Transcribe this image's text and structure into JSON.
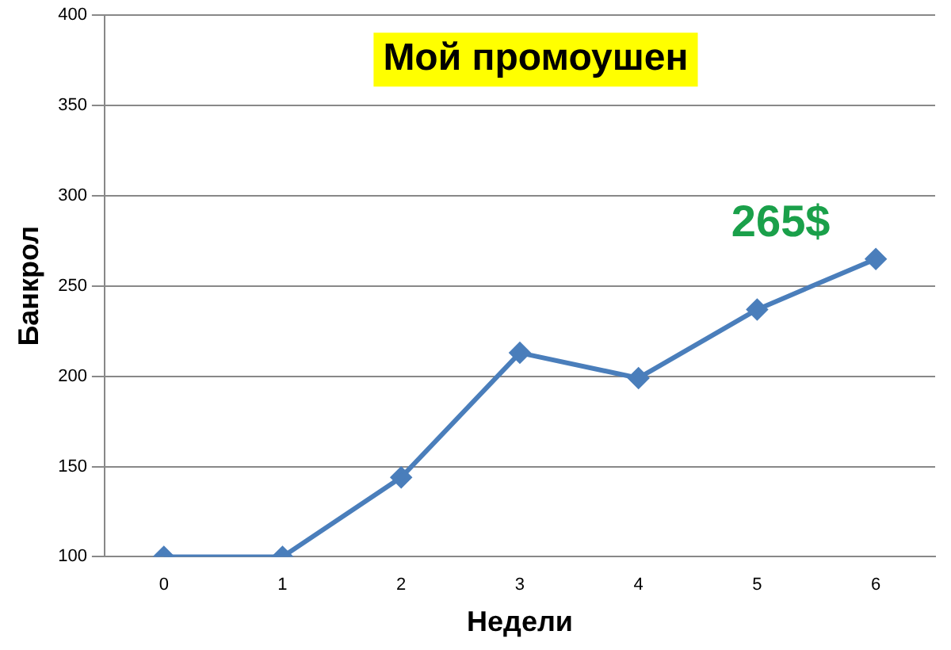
{
  "chart_data": {
    "type": "line",
    "title": "Мой промоушен",
    "xlabel": "Недели",
    "ylabel": "Банкрол",
    "categories": [
      "0",
      "1",
      "2",
      "3",
      "4",
      "5",
      "6"
    ],
    "series": [
      {
        "color": "#4a7ebb",
        "values": [
          100,
          100,
          144,
          213,
          199,
          237,
          265
        ]
      }
    ],
    "ylim": [
      100,
      400
    ],
    "yticks": [
      100,
      150,
      200,
      250,
      300,
      350,
      400
    ],
    "grid": "y",
    "legend": false,
    "marker": "diamond",
    "line_style": "solid",
    "annotations": [
      {
        "text": "265$",
        "x": "6",
        "y": 265
      }
    ]
  }
}
